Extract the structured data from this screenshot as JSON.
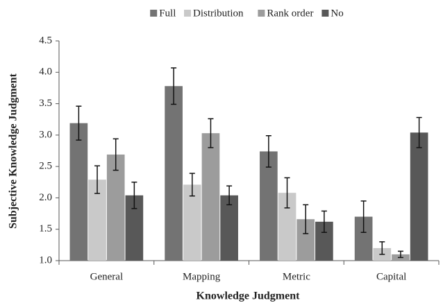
{
  "chart_data": {
    "type": "bar",
    "x_label": "Knowledge Judgment",
    "y_label": "Subjective Knowledge Judgment",
    "categories": [
      "General",
      "Mapping",
      "Metric",
      "Capital"
    ],
    "series": [
      {
        "name": "Full",
        "color": "#737373",
        "values": [
          3.19,
          3.78,
          2.74,
          1.7
        ],
        "errors": [
          0.27,
          0.29,
          0.25,
          0.25
        ]
      },
      {
        "name": "Distribution",
        "color": "#c9c9c9",
        "values": [
          2.29,
          2.21,
          2.08,
          1.2
        ],
        "errors": [
          0.22,
          0.18,
          0.24,
          0.1
        ]
      },
      {
        "name": "Rank order",
        "color": "#9c9c9c",
        "values": [
          2.69,
          3.03,
          1.66,
          1.1
        ],
        "errors": [
          0.25,
          0.23,
          0.23,
          0.05
        ]
      },
      {
        "name": "No",
        "color": "#585858",
        "values": [
          2.04,
          2.04,
          1.62,
          3.04
        ],
        "errors": [
          0.21,
          0.15,
          0.17,
          0.24
        ]
      }
    ],
    "ylim": [
      1,
      4.5
    ],
    "yticks": [
      {
        "value": 1,
        "label": "1.0"
      },
      1.5,
      {
        "value": 2,
        "label": "2.0"
      },
      2.5,
      {
        "value": 3,
        "label": "3.0"
      },
      3.5,
      {
        "value": 4,
        "label": "4.0"
      },
      4.5
    ],
    "legend": "top"
  }
}
